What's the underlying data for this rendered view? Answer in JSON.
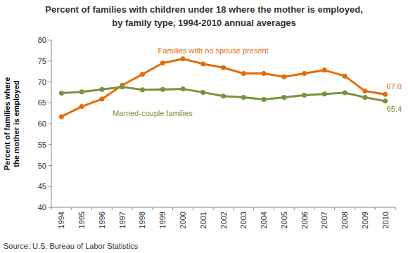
{
  "chart_data": {
    "type": "line",
    "title": "Percent of families with children under 18 where the mother is employed,\nby family type, 1994-2010 annual averages",
    "y_label": "Percent of families where\nthe mother is employed",
    "source": "Source: U.S. Bureau of Labor Statistics",
    "categories": [
      "1994",
      "1995",
      "1996",
      "1997",
      "1998",
      "1999",
      "2000",
      "2001",
      "2002",
      "2003",
      "2004",
      "2005",
      "2006",
      "2007",
      "2008",
      "2009",
      "2010"
    ],
    "series": [
      {
        "name": "Families with no spouse present",
        "color": "#e46c0a",
        "marker": "circle",
        "values": [
          61.7,
          64.1,
          65.9,
          69.2,
          71.8,
          74.5,
          75.5,
          74.3,
          73.4,
          72.0,
          72.0,
          71.2,
          72.0,
          72.8,
          71.4,
          67.8,
          67.0
        ],
        "value_labels": [
          null,
          null,
          null,
          null,
          null,
          null,
          null,
          null,
          null,
          null,
          null,
          null,
          null,
          null,
          null,
          null,
          "67.0"
        ]
      },
      {
        "name": "Married-couple families",
        "color": "#77933c",
        "marker": "circle",
        "values": [
          67.3,
          67.6,
          68.2,
          68.8,
          68.1,
          68.2,
          68.3,
          67.5,
          66.6,
          66.3,
          65.8,
          66.3,
          66.8,
          67.1,
          67.4,
          66.3,
          65.4
        ],
        "value_labels": [
          null,
          null,
          null,
          null,
          null,
          null,
          null,
          null,
          null,
          null,
          null,
          null,
          null,
          null,
          null,
          null,
          "65.4"
        ]
      }
    ],
    "ylim": [
      40,
      80
    ],
    "yticks": [
      40,
      45,
      50,
      55,
      60,
      65,
      70,
      75,
      80
    ],
    "grid": false
  }
}
